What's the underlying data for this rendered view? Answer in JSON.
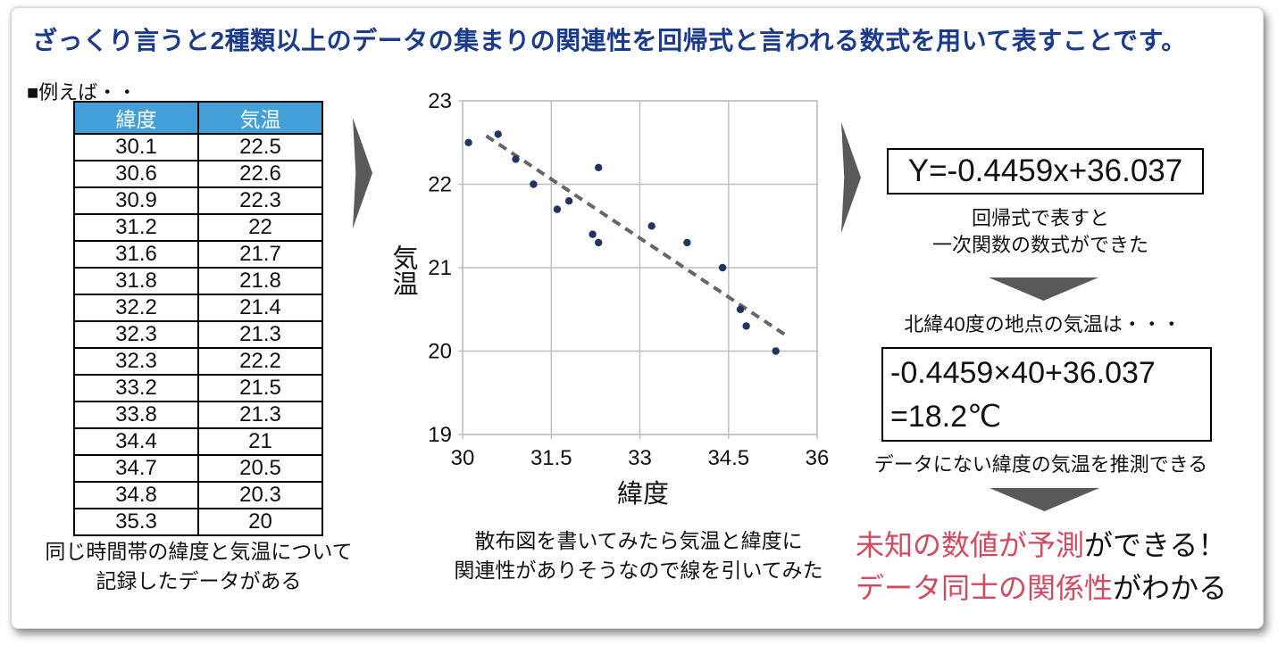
{
  "page": {
    "title": "ざっくり言うと2種類以上のデータの集まりの関連性を回帰式と言われる数式を用いて表すことです。",
    "example_label": "■例えば・・"
  },
  "colors": {
    "title_blue": "#1a3a8c",
    "table_header_blue": "#429fd7",
    "arrow_gray": "#595959",
    "accent_red": "#d24a5f"
  },
  "table": {
    "headers": [
      "緯度",
      "気温"
    ],
    "rows": [
      [
        "30.1",
        "22.5"
      ],
      [
        "30.6",
        "22.6"
      ],
      [
        "30.9",
        "22.3"
      ],
      [
        "31.2",
        "22"
      ],
      [
        "31.6",
        "21.7"
      ],
      [
        "31.8",
        "21.8"
      ],
      [
        "32.2",
        "21.4"
      ],
      [
        "32.3",
        "21.3"
      ],
      [
        "32.3",
        "22.2"
      ],
      [
        "33.2",
        "21.5"
      ],
      [
        "33.8",
        "21.3"
      ],
      [
        "34.4",
        "21"
      ],
      [
        "34.7",
        "20.5"
      ],
      [
        "34.8",
        "20.3"
      ],
      [
        "35.3",
        "20"
      ]
    ],
    "caption_line1": "同じ時間帯の緯度と気温について",
    "caption_line2": "記録したデータがある"
  },
  "chart_data": {
    "type": "scatter",
    "xlabel": "緯度",
    "ylabel": "気温",
    "xlim": [
      30,
      36
    ],
    "ylim": [
      19,
      23
    ],
    "xticks": [
      30,
      31.5,
      33,
      34.5,
      36
    ],
    "yticks": [
      19,
      20,
      21,
      22,
      23
    ],
    "grid": true,
    "points": [
      [
        30.1,
        22.5
      ],
      [
        30.6,
        22.6
      ],
      [
        30.9,
        22.3
      ],
      [
        31.2,
        22
      ],
      [
        31.6,
        21.7
      ],
      [
        31.8,
        21.8
      ],
      [
        32.2,
        21.4
      ],
      [
        32.3,
        21.3
      ],
      [
        32.3,
        22.2
      ],
      [
        33.2,
        21.5
      ],
      [
        33.8,
        21.3
      ],
      [
        34.4,
        21
      ],
      [
        34.7,
        20.5
      ],
      [
        34.8,
        20.3
      ],
      [
        35.3,
        20
      ]
    ],
    "trendline": {
      "style": "dashed",
      "x1": 30.4,
      "y1": 22.58,
      "x2": 35.45,
      "y2": 20.2
    },
    "point_color": "#1f3461",
    "trend_color": "#666666",
    "grid_color": "#bdbdbd",
    "caption_line1": "散布図を書いてみたら気温と緯度に",
    "caption_line2": "関連性がありそうなので線を引いてみた"
  },
  "right_panel": {
    "equation1": "Y=-0.4459x+36.037",
    "note1_line1": "回帰式で表すと",
    "note1_line2": "一次関数の数式ができた",
    "note2": "北緯40度の地点の気温は・・・",
    "equation2_line1": "-0.4459×40+36.037",
    "equation2_line2": "=18.2℃",
    "note3": "データにない緯度の気温を推測できる",
    "conclusion1_red": "未知の数値が予測",
    "conclusion1_black": "ができる！",
    "conclusion2_red": "データ同士の関係性",
    "conclusion2_black": "がわかる"
  }
}
